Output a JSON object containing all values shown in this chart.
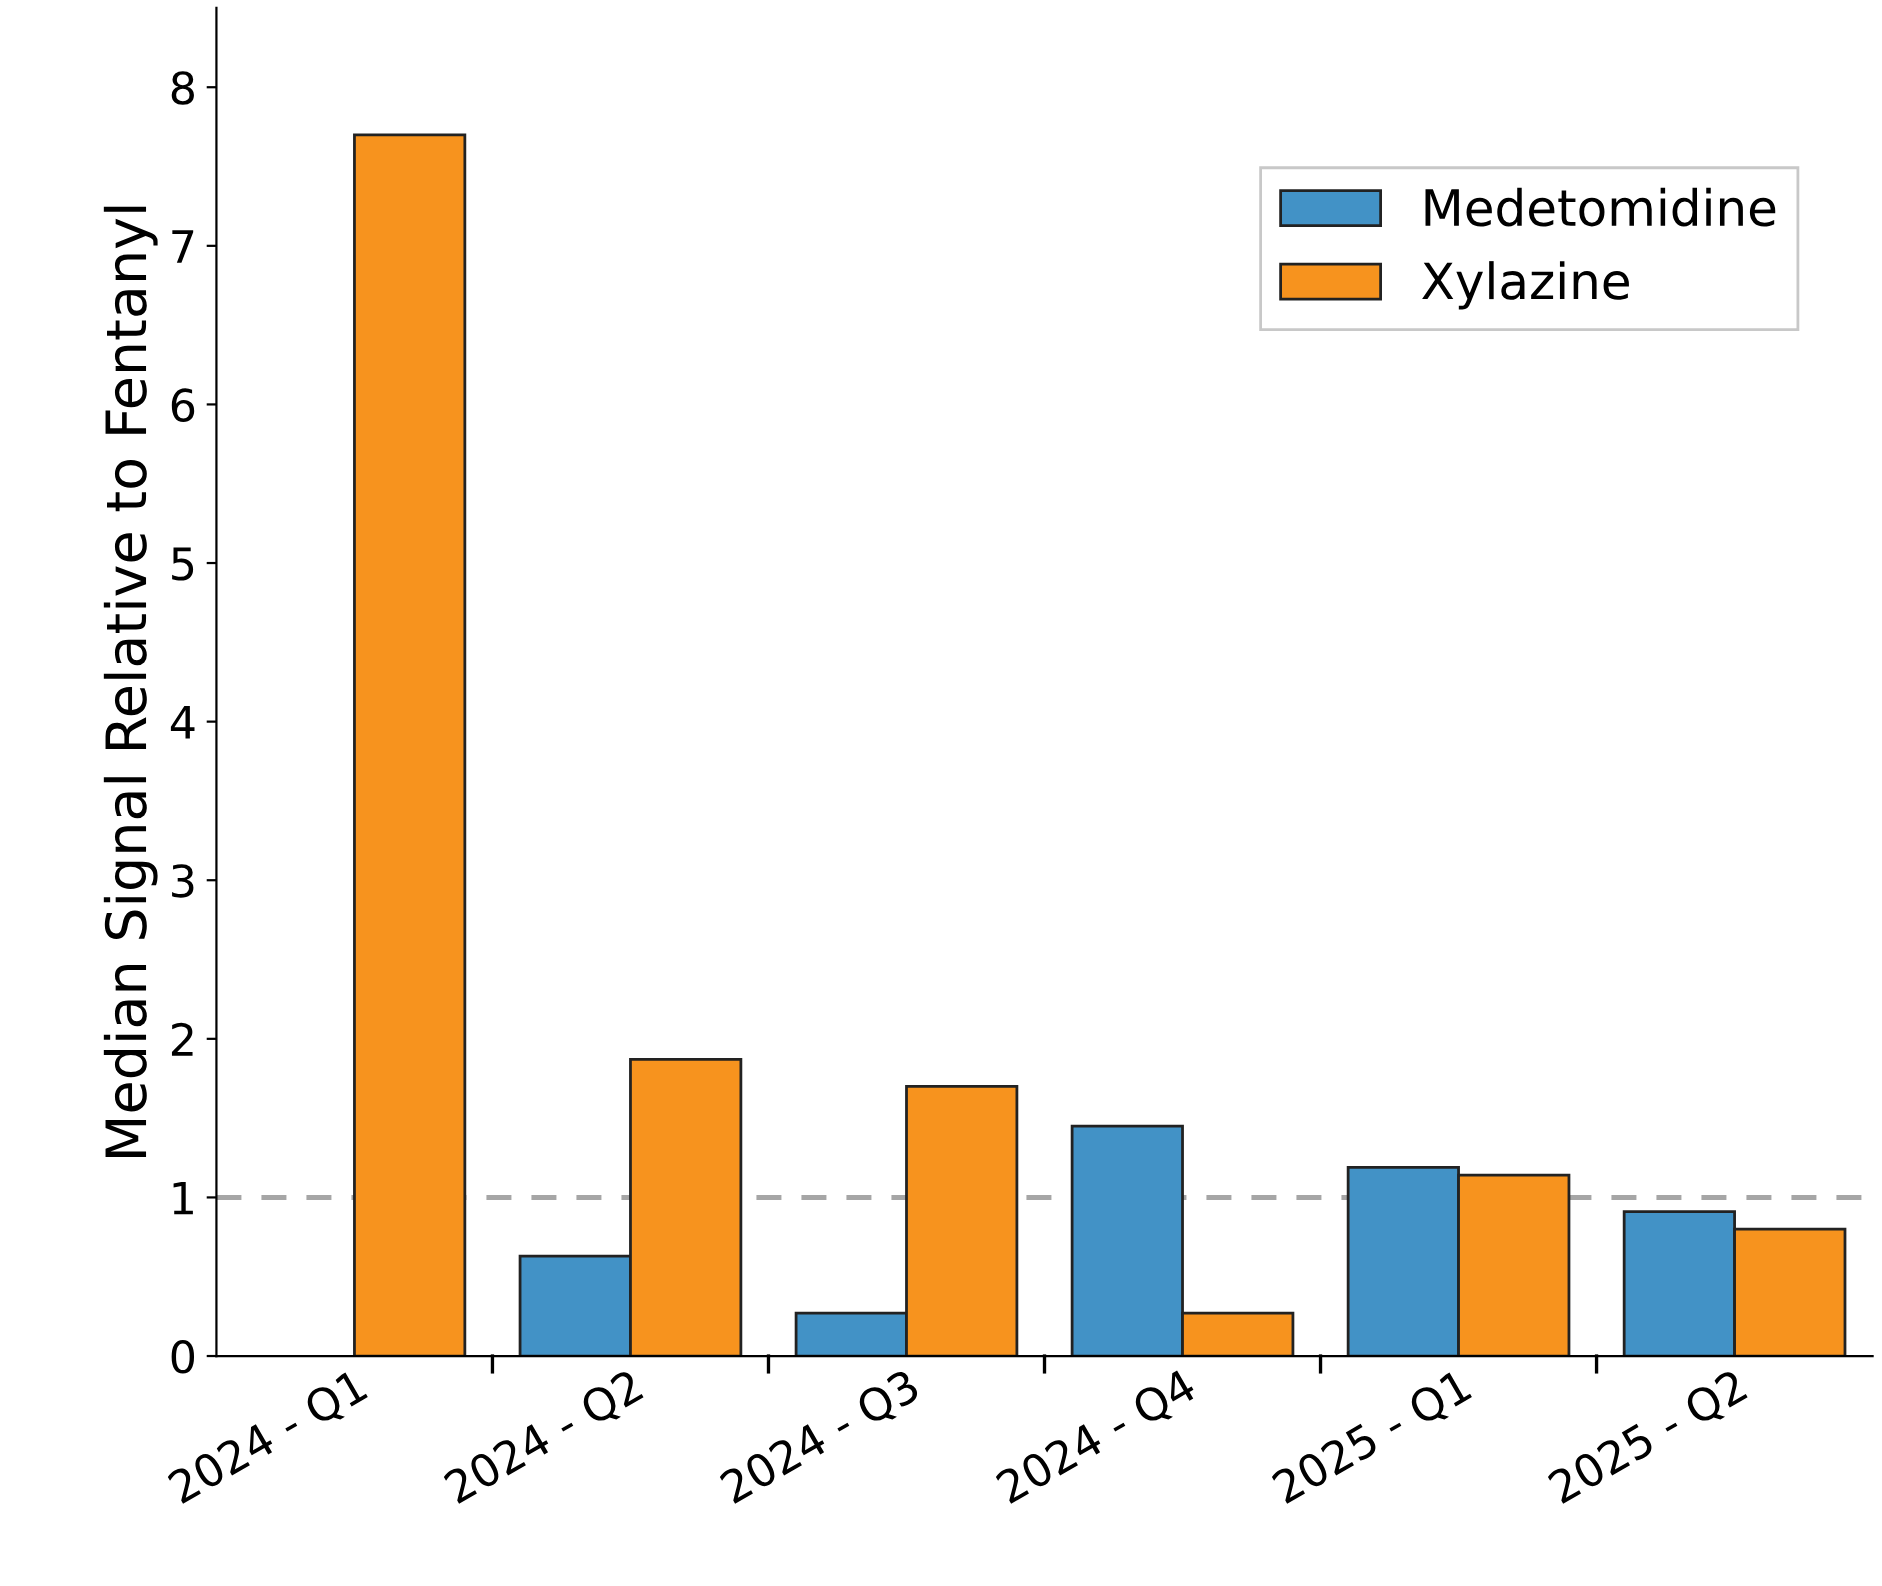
{
  "chart_data": {
    "type": "bar",
    "ylabel": "Median Signal Relative to Fentanyl",
    "categories": [
      "2024 - Q1",
      "2024 - Q2",
      "2024 - Q3",
      "2024 - Q4",
      "2025 - Q1",
      "2025 - Q2"
    ],
    "series": [
      {
        "name": "Medetomidine",
        "color": "#4292c6",
        "values": [
          null,
          0.63,
          0.27,
          1.45,
          1.19,
          0.91
        ]
      },
      {
        "name": "Xylazine",
        "color": "#f7931e",
        "values": [
          7.7,
          1.87,
          1.7,
          0.27,
          1.14,
          0.8
        ]
      }
    ],
    "ylim": [
      0,
      8.5
    ],
    "yticks": [
      0,
      1,
      2,
      3,
      4,
      5,
      6,
      7,
      8
    ],
    "ref_lines": [
      {
        "axis": "y",
        "value": 1,
        "color": "#a6a6a6",
        "line_style": "dashed"
      }
    ],
    "legend": "top right",
    "grid": false
  }
}
